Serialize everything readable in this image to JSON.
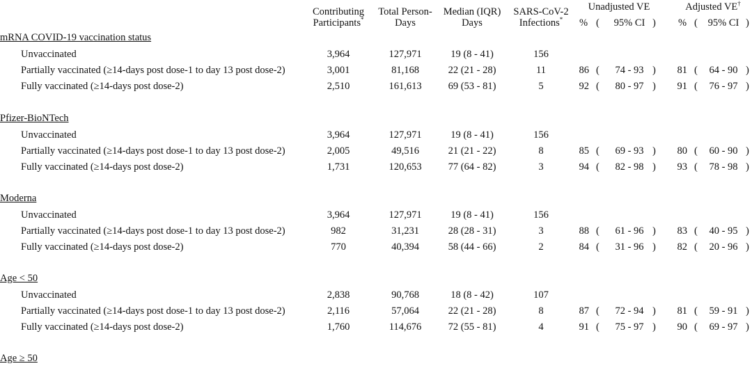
{
  "headers": {
    "participants": [
      "Contributing",
      "Participants"
    ],
    "person_days": [
      "Total Person-",
      "Days"
    ],
    "median": [
      "Median (IQR)",
      "Days"
    ],
    "infections": [
      "SARS-CoV-2",
      "Infections"
    ],
    "unadjusted": "Unadjusted VE",
    "adjusted": "Adjusted VE",
    "pct": "%",
    "ci_open": "(",
    "ci": "95% CI",
    "ci_close": ")",
    "star": "*",
    "dagger": "†"
  },
  "sections": [
    {
      "title": "mRNA COVID-19 vaccination status",
      "rows": [
        {
          "label": "Unvaccinated",
          "participants": "3,964",
          "person_days": "127,971",
          "median": "19 (8 - 41)",
          "infections": "156",
          "u_pct": "",
          "u_ci": "",
          "a_pct": "",
          "a_ci": ""
        },
        {
          "label": "Partially vaccinated (≥14-days post dose-1 to day 13 post dose-2)",
          "participants": "3,001",
          "person_days": "81,168",
          "median": "22 (21 - 28)",
          "infections": "11",
          "u_pct": "86",
          "u_ci": "74 - 93",
          "a_pct": "81",
          "a_ci": "64 - 90"
        },
        {
          "label": "Fully vaccinated (≥14-days post dose-2)",
          "participants": "2,510",
          "person_days": "161,613",
          "median": "69 (53 - 81)",
          "infections": "5",
          "u_pct": "92",
          "u_ci": "80 - 97",
          "a_pct": "91",
          "a_ci": "76 - 97"
        }
      ]
    },
    {
      "title": "Pfizer-BioNTech",
      "rows": [
        {
          "label": "Unvaccinated",
          "participants": "3,964",
          "person_days": "127,971",
          "median": "19 (8 - 41)",
          "infections": "156",
          "u_pct": "",
          "u_ci": "",
          "a_pct": "",
          "a_ci": ""
        },
        {
          "label": "Partially vaccinated (≥14-days post dose-1 to day 13 post dose-2)",
          "participants": "2,005",
          "person_days": "49,516",
          "median": "21 (21 - 22)",
          "infections": "8",
          "u_pct": "85",
          "u_ci": "69 - 93",
          "a_pct": "80",
          "a_ci": "60 - 90"
        },
        {
          "label": "Fully vaccinated (≥14-days post dose-2)",
          "participants": "1,731",
          "person_days": "120,653",
          "median": "77 (64 - 82)",
          "infections": "3",
          "u_pct": "94",
          "u_ci": "82 - 98",
          "a_pct": "93",
          "a_ci": "78 - 98"
        }
      ]
    },
    {
      "title": "Moderna",
      "rows": [
        {
          "label": "Unvaccinated",
          "participants": "3,964",
          "person_days": "127,971",
          "median": "19 (8 - 41)",
          "infections": "156",
          "u_pct": "",
          "u_ci": "",
          "a_pct": "",
          "a_ci": ""
        },
        {
          "label": "Partially vaccinated (≥14-days post dose-1 to day 13 post dose-2)",
          "participants": "982",
          "person_days": "31,231",
          "median": "28 (28 - 31)",
          "infections": "3",
          "u_pct": "88",
          "u_ci": "61 - 96",
          "a_pct": "83",
          "a_ci": "40 - 95"
        },
        {
          "label": "Fully vaccinated (≥14-days post dose-2)",
          "participants": "770",
          "person_days": "40,394",
          "median": "58 (44 - 66)",
          "infections": "2",
          "u_pct": "84",
          "u_ci": "31 - 96",
          "a_pct": "82",
          "a_ci": "20 - 96"
        }
      ]
    },
    {
      "title": "Age < 50",
      "rows": [
        {
          "label": "Unvaccinated",
          "participants": "2,838",
          "person_days": "90,768",
          "median": "18 (8 - 42)",
          "infections": "107",
          "u_pct": "",
          "u_ci": "",
          "a_pct": "",
          "a_ci": ""
        },
        {
          "label": "Partially vaccinated (≥14-days post dose-1 to day 13 post dose-2)",
          "participants": "2,116",
          "person_days": "57,064",
          "median": "22 (21 - 28)",
          "infections": "8",
          "u_pct": "87",
          "u_ci": "72 - 94",
          "a_pct": "81",
          "a_ci": "59 - 91"
        },
        {
          "label": "Fully vaccinated (≥14-days post dose-2)",
          "participants": "1,760",
          "person_days": "114,676",
          "median": "72 (55 - 81)",
          "infections": "4",
          "u_pct": "91",
          "u_ci": "75 - 97",
          "a_pct": "90",
          "a_ci": "69 - 97"
        }
      ]
    },
    {
      "title": "Age ≥ 50",
      "rows": []
    }
  ]
}
